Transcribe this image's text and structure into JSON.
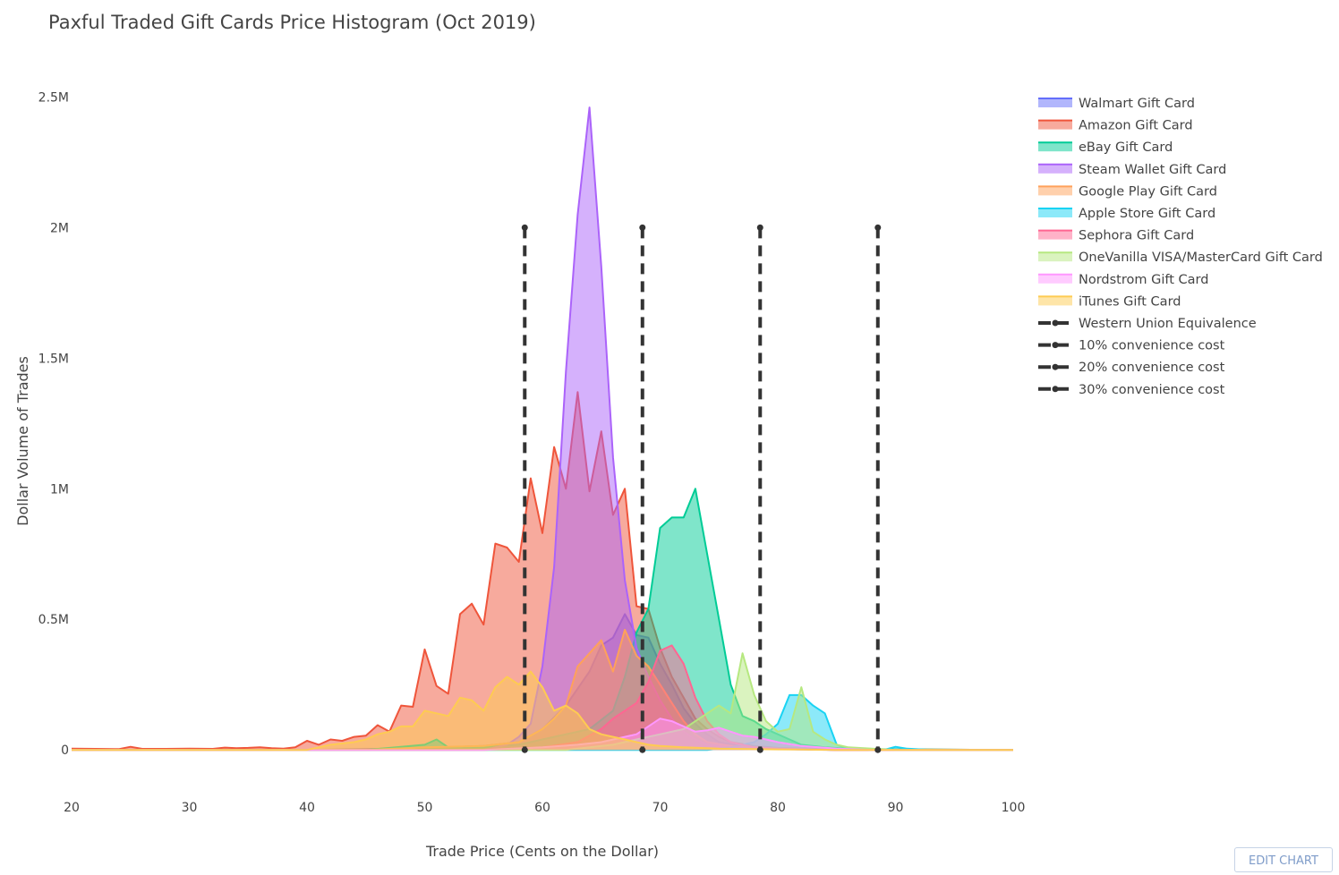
{
  "chart_data": {
    "type": "area",
    "title": "Paxful Traded Gift Cards Price Histogram (Oct 2019)",
    "xlabel": "Trade Price (Cents on the Dollar)",
    "ylabel": "Dollar Volume of Trades",
    "xlim": [
      20,
      100
    ],
    "ylim": [
      -150000,
      2700000
    ],
    "xticks": [
      20,
      30,
      40,
      50,
      60,
      70,
      80,
      90,
      100
    ],
    "xtick_labels": [
      "20",
      "30",
      "40",
      "50",
      "60",
      "70",
      "80",
      "90",
      "100"
    ],
    "yticks": [
      0,
      500000,
      1000000,
      1500000,
      2000000,
      2500000
    ],
    "ytick_labels": [
      "0",
      "0.5M",
      "1M",
      "1.5M",
      "2M",
      "2.5M"
    ],
    "grid": false,
    "legend_position": "top-right",
    "series": [
      {
        "name": "Walmart Gift Card",
        "color": "#636efa",
        "points": [
          [
            20,
            0
          ],
          [
            40,
            0
          ],
          [
            45,
            3000
          ],
          [
            50,
            8000
          ],
          [
            55,
            15000
          ],
          [
            58,
            30000
          ],
          [
            60,
            80000
          ],
          [
            62,
            170000
          ],
          [
            64,
            300000
          ],
          [
            65,
            400000
          ],
          [
            66,
            430000
          ],
          [
            67,
            520000
          ],
          [
            68,
            440000
          ],
          [
            69,
            430000
          ],
          [
            70,
            330000
          ],
          [
            71,
            250000
          ],
          [
            72,
            160000
          ],
          [
            73,
            100000
          ],
          [
            74,
            60000
          ],
          [
            75,
            30000
          ],
          [
            77,
            15000
          ],
          [
            80,
            5000
          ],
          [
            85,
            0
          ],
          [
            100,
            0
          ]
        ]
      },
      {
        "name": "Amazon Gift Card",
        "color": "#ef553b",
        "points": [
          [
            20,
            5000
          ],
          [
            22,
            4000
          ],
          [
            24,
            3000
          ],
          [
            25,
            12000
          ],
          [
            26,
            4000
          ],
          [
            28,
            4000
          ],
          [
            30,
            5000
          ],
          [
            32,
            4000
          ],
          [
            33,
            9000
          ],
          [
            34,
            7000
          ],
          [
            35,
            8000
          ],
          [
            36,
            10000
          ],
          [
            37,
            7000
          ],
          [
            38,
            5000
          ],
          [
            39,
            10000
          ],
          [
            40,
            35000
          ],
          [
            41,
            20000
          ],
          [
            42,
            40000
          ],
          [
            43,
            35000
          ],
          [
            44,
            50000
          ],
          [
            45,
            55000
          ],
          [
            46,
            95000
          ],
          [
            47,
            70000
          ],
          [
            48,
            170000
          ],
          [
            49,
            165000
          ],
          [
            50,
            385000
          ],
          [
            51,
            245000
          ],
          [
            52,
            215000
          ],
          [
            53,
            520000
          ],
          [
            54,
            560000
          ],
          [
            55,
            480000
          ],
          [
            56,
            790000
          ],
          [
            57,
            775000
          ],
          [
            58,
            720000
          ],
          [
            59,
            1040000
          ],
          [
            60,
            830000
          ],
          [
            61,
            1160000
          ],
          [
            62,
            1000000
          ],
          [
            63,
            1370000
          ],
          [
            64,
            990000
          ],
          [
            65,
            1220000
          ],
          [
            66,
            900000
          ],
          [
            67,
            1000000
          ],
          [
            68,
            550000
          ],
          [
            69,
            540000
          ],
          [
            70,
            390000
          ],
          [
            71,
            280000
          ],
          [
            72,
            200000
          ],
          [
            73,
            120000
          ],
          [
            74,
            80000
          ],
          [
            75,
            50000
          ],
          [
            76,
            30000
          ],
          [
            78,
            15000
          ],
          [
            80,
            8000
          ],
          [
            84,
            4000
          ],
          [
            90,
            2000
          ],
          [
            100,
            0
          ]
        ]
      },
      {
        "name": "eBay Gift Card",
        "color": "#00cc96",
        "points": [
          [
            20,
            0
          ],
          [
            45,
            0
          ],
          [
            50,
            20000
          ],
          [
            51,
            40000
          ],
          [
            52,
            10000
          ],
          [
            55,
            10000
          ],
          [
            58,
            20000
          ],
          [
            60,
            40000
          ],
          [
            62,
            60000
          ],
          [
            64,
            80000
          ],
          [
            66,
            150000
          ],
          [
            67,
            280000
          ],
          [
            68,
            450000
          ],
          [
            69,
            540000
          ],
          [
            70,
            850000
          ],
          [
            71,
            890000
          ],
          [
            72,
            890000
          ],
          [
            73,
            1000000
          ],
          [
            74,
            750000
          ],
          [
            75,
            500000
          ],
          [
            76,
            250000
          ],
          [
            77,
            130000
          ],
          [
            78,
            110000
          ],
          [
            79,
            80000
          ],
          [
            80,
            60000
          ],
          [
            81,
            40000
          ],
          [
            82,
            20000
          ],
          [
            84,
            10000
          ],
          [
            86,
            5000
          ],
          [
            90,
            2000
          ],
          [
            100,
            0
          ]
        ]
      },
      {
        "name": "Steam Wallet  Gift Card",
        "color": "#ab63fa",
        "points": [
          [
            20,
            0
          ],
          [
            55,
            0
          ],
          [
            57,
            20000
          ],
          [
            58,
            50000
          ],
          [
            59,
            100000
          ],
          [
            60,
            320000
          ],
          [
            61,
            700000
          ],
          [
            62,
            1450000
          ],
          [
            63,
            2050000
          ],
          [
            64,
            2460000
          ],
          [
            65,
            1850000
          ],
          [
            66,
            1120000
          ],
          [
            67,
            650000
          ],
          [
            68,
            390000
          ],
          [
            69,
            280000
          ],
          [
            70,
            190000
          ],
          [
            71,
            120000
          ],
          [
            72,
            70000
          ],
          [
            73,
            40000
          ],
          [
            74,
            20000
          ],
          [
            76,
            10000
          ],
          [
            80,
            3000
          ],
          [
            85,
            0
          ],
          [
            100,
            0
          ]
        ]
      },
      {
        "name": "Google Play Gift Card",
        "color": "#ffa15a",
        "points": [
          [
            20,
            0
          ],
          [
            45,
            0
          ],
          [
            50,
            10000
          ],
          [
            55,
            15000
          ],
          [
            58,
            30000
          ],
          [
            60,
            80000
          ],
          [
            61,
            120000
          ],
          [
            62,
            170000
          ],
          [
            63,
            320000
          ],
          [
            64,
            370000
          ],
          [
            65,
            420000
          ],
          [
            66,
            300000
          ],
          [
            67,
            460000
          ],
          [
            68,
            360000
          ],
          [
            69,
            320000
          ],
          [
            70,
            250000
          ],
          [
            71,
            180000
          ],
          [
            72,
            110000
          ],
          [
            73,
            60000
          ],
          [
            74,
            30000
          ],
          [
            76,
            15000
          ],
          [
            80,
            5000
          ],
          [
            85,
            0
          ],
          [
            100,
            0
          ]
        ]
      },
      {
        "name": "Apple Store Gift Card",
        "color": "#19d3f3",
        "points": [
          [
            20,
            0
          ],
          [
            74,
            0
          ],
          [
            76,
            10000
          ],
          [
            78,
            30000
          ],
          [
            79,
            60000
          ],
          [
            80,
            100000
          ],
          [
            81,
            210000
          ],
          [
            82,
            210000
          ],
          [
            83,
            170000
          ],
          [
            84,
            140000
          ],
          [
            85,
            20000
          ],
          [
            86,
            5000
          ],
          [
            88,
            0
          ],
          [
            89,
            0
          ],
          [
            90,
            12000
          ],
          [
            91,
            5000
          ],
          [
            93,
            0
          ],
          [
            100,
            0
          ]
        ]
      },
      {
        "name": "Sephora Gift Card",
        "color": "#ff6692",
        "points": [
          [
            20,
            0
          ],
          [
            55,
            0
          ],
          [
            60,
            10000
          ],
          [
            63,
            30000
          ],
          [
            65,
            80000
          ],
          [
            66,
            120000
          ],
          [
            67,
            150000
          ],
          [
            68,
            180000
          ],
          [
            69,
            260000
          ],
          [
            70,
            380000
          ],
          [
            71,
            400000
          ],
          [
            72,
            330000
          ],
          [
            73,
            200000
          ],
          [
            74,
            110000
          ],
          [
            75,
            60000
          ],
          [
            76,
            30000
          ],
          [
            78,
            10000
          ],
          [
            80,
            5000
          ],
          [
            85,
            0
          ],
          [
            100,
            0
          ]
        ]
      },
      {
        "name": "OneVanilla VISA/MasterCard Gift Card",
        "color": "#b6e880",
        "points": [
          [
            20,
            0
          ],
          [
            62,
            0
          ],
          [
            66,
            20000
          ],
          [
            68,
            40000
          ],
          [
            70,
            60000
          ],
          [
            72,
            80000
          ],
          [
            73,
            110000
          ],
          [
            74,
            140000
          ],
          [
            75,
            170000
          ],
          [
            76,
            140000
          ],
          [
            77,
            370000
          ],
          [
            78,
            210000
          ],
          [
            79,
            110000
          ],
          [
            80,
            70000
          ],
          [
            81,
            80000
          ],
          [
            82,
            240000
          ],
          [
            83,
            70000
          ],
          [
            84,
            40000
          ],
          [
            85,
            20000
          ],
          [
            86,
            10000
          ],
          [
            88,
            5000
          ],
          [
            90,
            0
          ],
          [
            100,
            0
          ]
        ]
      },
      {
        "name": "Nordstrom Gift Card",
        "color": "#ff97ff",
        "points": [
          [
            20,
            0
          ],
          [
            55,
            0
          ],
          [
            60,
            10000
          ],
          [
            63,
            20000
          ],
          [
            65,
            30000
          ],
          [
            67,
            50000
          ],
          [
            68,
            60000
          ],
          [
            69,
            90000
          ],
          [
            70,
            120000
          ],
          [
            71,
            110000
          ],
          [
            72,
            90000
          ],
          [
            73,
            70000
          ],
          [
            74,
            75000
          ],
          [
            75,
            85000
          ],
          [
            76,
            70000
          ],
          [
            77,
            55000
          ],
          [
            78,
            50000
          ],
          [
            79,
            40000
          ],
          [
            80,
            30000
          ],
          [
            82,
            15000
          ],
          [
            85,
            5000
          ],
          [
            88,
            0
          ],
          [
            100,
            0
          ]
        ]
      },
      {
        "name": "iTunes Gift Card",
        "color": "#fecb52",
        "points": [
          [
            20,
            0
          ],
          [
            40,
            0
          ],
          [
            41,
            10000
          ],
          [
            42,
            20000
          ],
          [
            44,
            30000
          ],
          [
            45,
            40000
          ],
          [
            46,
            60000
          ],
          [
            47,
            70000
          ],
          [
            48,
            90000
          ],
          [
            49,
            90000
          ],
          [
            50,
            150000
          ],
          [
            51,
            140000
          ],
          [
            52,
            130000
          ],
          [
            53,
            200000
          ],
          [
            54,
            190000
          ],
          [
            55,
            150000
          ],
          [
            56,
            240000
          ],
          [
            57,
            280000
          ],
          [
            58,
            250000
          ],
          [
            59,
            300000
          ],
          [
            60,
            240000
          ],
          [
            61,
            150000
          ],
          [
            62,
            170000
          ],
          [
            63,
            140000
          ],
          [
            64,
            80000
          ],
          [
            65,
            60000
          ],
          [
            66,
            50000
          ],
          [
            67,
            40000
          ],
          [
            68,
            30000
          ],
          [
            69,
            20000
          ],
          [
            70,
            15000
          ],
          [
            72,
            10000
          ],
          [
            75,
            5000
          ],
          [
            80,
            2000
          ],
          [
            85,
            0
          ],
          [
            100,
            0
          ]
        ]
      },
      {
        "name": "Western Union Equivalence",
        "color": "#333333",
        "dash_x": 58.5,
        "y_top": 2000000
      },
      {
        "name": "10% convenience cost",
        "color": "#333333",
        "dash_x": 68.5,
        "y_top": 2000000
      },
      {
        "name": "20% convenience cost",
        "color": "#333333",
        "dash_x": 78.5,
        "y_top": 2000000
      },
      {
        "name": "30% convenience cost",
        "color": "#333333",
        "dash_x": 88.5,
        "y_top": 2000000
      }
    ]
  },
  "controls": {
    "edit_chart_label": "EDIT CHART"
  }
}
